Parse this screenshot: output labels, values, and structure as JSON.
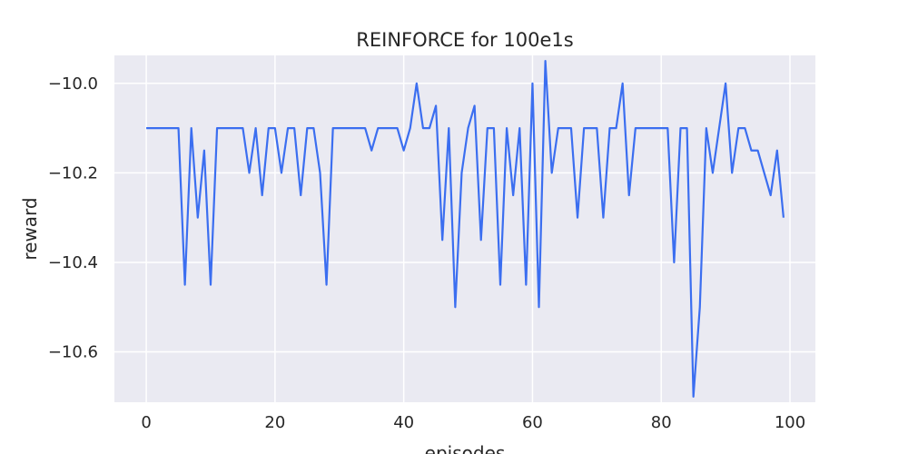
{
  "chart_data": {
    "type": "line",
    "title": "REINFORCE for 100e1s",
    "xlabel": "episodes",
    "ylabel": "reward",
    "xlim": [
      -4.95,
      103.95
    ],
    "ylim": [
      -10.7125,
      -9.9375
    ],
    "grid": true,
    "x_ticks": [
      0,
      20,
      40,
      60,
      80,
      100
    ],
    "y_ticks": [
      -10.0,
      -10.2,
      -10.4,
      -10.6
    ],
    "x_tick_labels": [
      "0",
      "20",
      "40",
      "60",
      "80",
      "100"
    ],
    "y_tick_labels": [
      "−10.0",
      "−10.2",
      "−10.4",
      "−10.6"
    ],
    "colors": {
      "line": "#3b6ef0",
      "plot_bg": "#eaeaf2",
      "grid": "#ffffff"
    },
    "series": [
      {
        "values": [
          -10.1,
          -10.1,
          -10.1,
          -10.1,
          -10.1,
          -10.1,
          -10.45,
          -10.1,
          -10.3,
          -10.15,
          -10.45,
          -10.1,
          -10.1,
          -10.1,
          -10.1,
          -10.1,
          -10.2,
          -10.1,
          -10.25,
          -10.1,
          -10.1,
          -10.2,
          -10.1,
          -10.1,
          -10.25,
          -10.1,
          -10.1,
          -10.2,
          -10.45,
          -10.1,
          -10.1,
          -10.1,
          -10.1,
          -10.1,
          -10.1,
          -10.15,
          -10.1,
          -10.1,
          -10.1,
          -10.1,
          -10.15,
          -10.1,
          -10.0,
          -10.1,
          -10.1,
          -10.05,
          -10.35,
          -10.1,
          -10.5,
          -10.2,
          -10.1,
          -10.05,
          -10.35,
          -10.1,
          -10.1,
          -10.45,
          -10.1,
          -10.25,
          -10.1,
          -10.45,
          -10.0,
          -10.5,
          -9.95,
          -10.2,
          -10.1,
          -10.1,
          -10.1,
          -10.3,
          -10.1,
          -10.1,
          -10.1,
          -10.3,
          -10.1,
          -10.1,
          -10.0,
          -10.25,
          -10.1,
          -10.1,
          -10.1,
          -10.1,
          -10.1,
          -10.1,
          -10.4,
          -10.1,
          -10.1,
          -10.7,
          -10.5,
          -10.1,
          -10.2,
          -10.1,
          -10.0,
          -10.2,
          -10.1,
          -10.1,
          -10.15,
          -10.15,
          -10.2,
          -10.25,
          -10.15,
          -10.3
        ]
      }
    ]
  }
}
